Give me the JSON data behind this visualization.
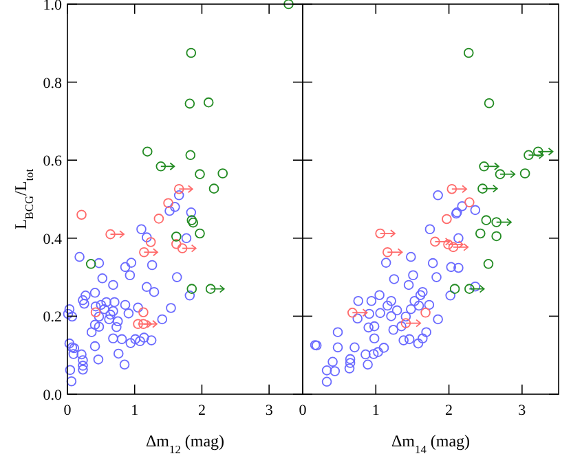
{
  "chart_data": [
    {
      "type": "scatter",
      "xlabel": "Δm$_{12}$ (mag)",
      "ylabel": "L$_{BCG}$/L$_{tot}$",
      "xlim": [
        0,
        3.5
      ],
      "ylim": [
        0,
        1
      ],
      "xticks": [
        0,
        1,
        2,
        3
      ],
      "yticks": [
        {
          "value": 0,
          "label": "0.0"
        },
        {
          "value": 0.2,
          "label": "0.2"
        },
        {
          "value": 0.4,
          "label": "0.4"
        },
        {
          "value": 0.6,
          "label": "0.6"
        },
        {
          "value": 0.8,
          "label": "0.8"
        },
        {
          "value": 1,
          "label": "1.0"
        }
      ],
      "marker": "circle",
      "series": [
        {
          "color": "#6a6aff",
          "x": [
            1.66,
            1.6,
            1.52,
            1.84,
            1.1,
            1.18,
            1.77,
            0.18,
            0.47,
            0.95,
            1.26,
            0.86,
            0.52,
            0.93,
            1.63,
            0.68,
            1.18,
            1.29,
            1.82,
            0.41,
            0.27,
            0.23,
            0.25,
            0.58,
            0.7,
            0.86,
            0.5,
            0.42,
            1.05,
            0.55,
            0.68,
            0.64,
            0.91,
            0.03,
            0.07,
            0.01,
            0.47,
            0.62,
            1.41,
            1.54,
            0.75,
            0.41,
            0.47,
            0.73,
            0.36,
            0.68,
            0.81,
            1.01,
            1.08,
            0.94,
            1.25,
            1.14,
            0.03,
            0.07,
            0.1,
            0.41,
            0.76,
            0.21,
            0.09,
            0.46,
            0.23,
            0.23,
            0.23,
            0.04,
            0.85,
            0.06
          ],
          "values": [
            0.51,
            0.48,
            0.47,
            0.466,
            0.423,
            0.402,
            0.4,
            0.352,
            0.336,
            0.337,
            0.331,
            0.326,
            0.297,
            0.305,
            0.3,
            0.28,
            0.275,
            0.262,
            0.253,
            0.26,
            0.253,
            0.241,
            0.232,
            0.236,
            0.236,
            0.229,
            0.229,
            0.225,
            0.222,
            0.218,
            0.213,
            0.204,
            0.207,
            0.218,
            0.199,
            0.206,
            0.199,
            0.192,
            0.192,
            0.221,
            0.187,
            0.178,
            0.173,
            0.172,
            0.159,
            0.143,
            0.141,
            0.141,
            0.136,
            0.131,
            0.138,
            0.145,
            0.13,
            0.12,
            0.118,
            0.123,
            0.104,
            0.102,
            0.103,
            0.089,
            0.087,
            0.073,
            0.063,
            0.062,
            0.076,
            0.033
          ]
        },
        {
          "color": "#ff6a6a",
          "x": [
            1.66,
            1.5,
            0.21,
            1.36,
            0.64,
            1.24,
            1.62,
            1.71,
            1.14,
            0.42,
            1.13,
            1.05,
            1.13
          ],
          "values": [
            0.526,
            0.49,
            0.46,
            0.45,
            0.41,
            0.39,
            0.385,
            0.374,
            0.364,
            0.21,
            0.21,
            0.18,
            0.18
          ],
          "xerrors": [
            [
              1.66,
              1.86
            ],
            null,
            null,
            null,
            [
              0.64,
              0.84
            ],
            null,
            null,
            [
              1.71,
              1.91
            ],
            [
              1.14,
              1.34
            ],
            null,
            null,
            [
              1.05,
              1.25
            ],
            [
              1.13,
              1.33
            ]
          ]
        },
        {
          "color": "#228b22",
          "x": [
            3.29,
            1.84,
            1.82,
            2.1,
            1.19,
            1.83,
            1.39,
            1.97,
            2.31,
            2.18,
            1.85,
            1.87,
            1.62,
            1.97,
            0.35,
            1.85,
            2.13
          ],
          "values": [
            1.0,
            0.875,
            0.745,
            0.748,
            0.622,
            0.613,
            0.584,
            0.564,
            0.566,
            0.527,
            0.446,
            0.44,
            0.404,
            0.412,
            0.334,
            0.27,
            0.27
          ],
          "xerrors": [
            null,
            null,
            null,
            null,
            null,
            null,
            [
              1.39,
              1.59
            ],
            null,
            null,
            null,
            null,
            null,
            null,
            null,
            null,
            null,
            [
              2.13,
              2.33
            ]
          ]
        }
      ]
    },
    {
      "type": "scatter",
      "xlabel": "Δm$_{14}$ (mag)",
      "xlim": [
        0,
        3.5
      ],
      "ylim": [
        0,
        1
      ],
      "xticks": [
        0,
        1,
        2,
        3
      ],
      "yticks": [
        0,
        0.2,
        0.4,
        0.6,
        0.8,
        1
      ],
      "tick_labels": "x",
      "marker": "circle",
      "series": [
        {
          "color": "#6a6aff",
          "x": [
            0.17,
            1.85,
            2.18,
            2.11,
            2.36,
            2.1,
            1.74,
            2.13,
            1.14,
            1.48,
            1.78,
            2.03,
            2.13,
            1.83,
            1.51,
            1.25,
            1.45,
            1.64,
            1.61,
            2.36,
            2.02,
            1.05,
            0.76,
            0.94,
            1.21,
            1.53,
            1.73,
            1.59,
            1.16,
            1.48,
            1.29,
            1.06,
            0.91,
            0.75,
            1.21,
            1.41,
            1.85,
            0.98,
            0.9,
            1.35,
            1.69,
            1.24,
            0.48,
            0.98,
            1.46,
            1.38,
            1.64,
            1.58,
            1.11,
            0.19,
            0.48,
            0.71,
            0.86,
            0.97,
            1.03,
            0.65,
            0.65,
            0.41,
            0.89,
            0.64,
            0.33,
            0.44,
            0.33
          ],
          "values": [
            0.126,
            0.51,
            0.482,
            0.466,
            0.472,
            0.463,
            0.423,
            0.4,
            0.337,
            0.352,
            0.336,
            0.326,
            0.324,
            0.3,
            0.305,
            0.295,
            0.28,
            0.262,
            0.254,
            0.276,
            0.253,
            0.254,
            0.239,
            0.239,
            0.239,
            0.239,
            0.229,
            0.227,
            0.227,
            0.218,
            0.215,
            0.208,
            0.206,
            0.194,
            0.2,
            0.199,
            0.192,
            0.174,
            0.171,
            0.174,
            0.159,
            0.165,
            0.159,
            0.143,
            0.141,
            0.138,
            0.143,
            0.13,
            0.119,
            0.125,
            0.12,
            0.12,
            0.102,
            0.103,
            0.108,
            0.09,
            0.08,
            0.083,
            0.076,
            0.066,
            0.061,
            0.059,
            0.032
          ]
        },
        {
          "color": "#ff6a6a",
          "x": [
            2.04,
            2.28,
            1.97,
            1.06,
            1.16,
            1.81,
            1.99,
            2.06,
            0.68,
            1.41,
            1.68
          ],
          "values": [
            0.526,
            0.492,
            0.449,
            0.412,
            0.364,
            0.391,
            0.384,
            0.377,
            0.209,
            0.182,
            0.209
          ],
          "xerrors": [
            [
              2.04,
              2.24
            ],
            null,
            null,
            [
              1.06,
              1.26
            ],
            [
              1.16,
              1.36
            ],
            [
              1.81,
              2.01
            ],
            [
              1.99,
              2.19
            ],
            [
              2.06,
              2.26
            ],
            [
              0.68,
              0.88
            ],
            [
              1.41,
              1.61
            ],
            null
          ]
        },
        {
          "color": "#228b22",
          "x": [
            2.27,
            2.55,
            3.09,
            3.22,
            2.48,
            2.7,
            3.04,
            2.46,
            2.51,
            2.65,
            2.43,
            2.65,
            2.54,
            2.08,
            2.28
          ],
          "values": [
            0.875,
            0.746,
            0.613,
            0.622,
            0.584,
            0.564,
            0.566,
            0.527,
            0.446,
            0.441,
            0.412,
            0.405,
            0.334,
            0.27,
            0.27
          ],
          "xerrors": [
            null,
            null,
            [
              3.09,
              3.29
            ],
            [
              3.22,
              3.42
            ],
            [
              2.48,
              2.68
            ],
            [
              2.7,
              2.9
            ],
            null,
            [
              2.46,
              2.66
            ],
            null,
            [
              2.65,
              2.85
            ],
            null,
            null,
            null,
            null,
            [
              2.28,
              2.48
            ]
          ]
        }
      ]
    }
  ]
}
